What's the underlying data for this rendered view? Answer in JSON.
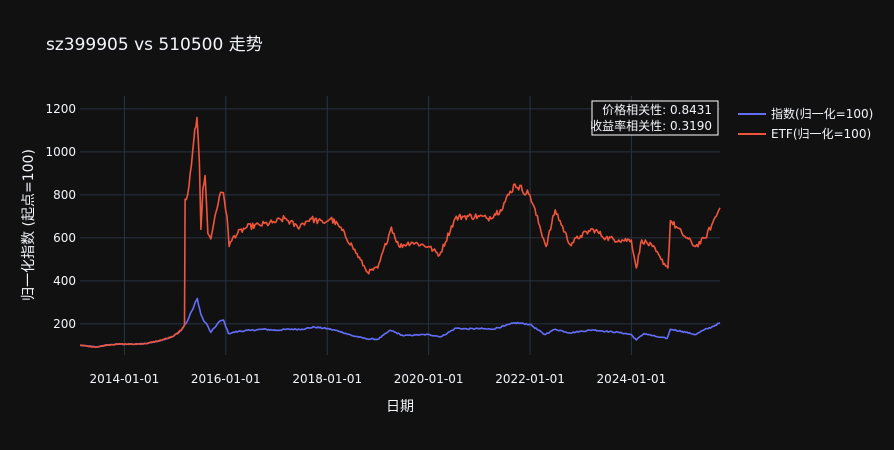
{
  "chart_data": {
    "type": "line",
    "title": "sz399905 vs 510500 走势",
    "xlabel": "日期",
    "ylabel": "归一化指数 (起点=100)",
    "x_range": [
      "2013-02-15",
      "2025-09-30"
    ],
    "ylim": [
      55,
      1260
    ],
    "y_ticks": [
      200,
      400,
      600,
      800,
      1000,
      1200
    ],
    "x_ticks": [
      "2014-01-01",
      "2016-01-01",
      "2018-01-01",
      "2020-01-01",
      "2022-01-01",
      "2024-01-01"
    ],
    "grid": true,
    "legend_position": "right",
    "annotation": {
      "lines": [
        "价格相关性: 0.8431",
        "收益率相关性: 0.3190"
      ]
    },
    "series": [
      {
        "name": "指数(归一化=100)",
        "color": "#636efa",
        "points": [
          [
            "2013-02-15",
            100
          ],
          [
            "2013-04-01",
            97
          ],
          [
            "2013-06-15",
            92
          ],
          [
            "2013-09-01",
            102
          ],
          [
            "2013-12-01",
            106
          ],
          [
            "2014-03-01",
            105
          ],
          [
            "2014-06-01",
            108
          ],
          [
            "2014-09-01",
            120
          ],
          [
            "2014-12-15",
            140
          ],
          [
            "2015-02-15",
            170
          ],
          [
            "2015-04-01",
            215
          ],
          [
            "2015-05-01",
            260
          ],
          [
            "2015-06-10",
            318
          ],
          [
            "2015-07-05",
            245
          ],
          [
            "2015-07-25",
            215
          ],
          [
            "2015-08-20",
            195
          ],
          [
            "2015-09-15",
            160
          ],
          [
            "2015-11-15",
            210
          ],
          [
            "2015-12-15",
            218
          ],
          [
            "2016-01-20",
            155
          ],
          [
            "2016-04-01",
            165
          ],
          [
            "2016-07-01",
            170
          ],
          [
            "2016-10-01",
            175
          ],
          [
            "2016-12-31",
            170
          ],
          [
            "2017-04-01",
            175
          ],
          [
            "2017-07-01",
            175
          ],
          [
            "2017-10-01",
            185
          ],
          [
            "2017-12-31",
            178
          ],
          [
            "2018-04-01",
            165
          ],
          [
            "2018-07-01",
            145
          ],
          [
            "2018-10-15",
            130
          ],
          [
            "2018-12-31",
            128
          ],
          [
            "2019-04-01",
            170
          ],
          [
            "2019-07-01",
            145
          ],
          [
            "2019-10-01",
            148
          ],
          [
            "2019-12-31",
            150
          ],
          [
            "2020-04-01",
            140
          ],
          [
            "2020-07-15",
            180
          ],
          [
            "2020-10-01",
            176
          ],
          [
            "2020-12-31",
            178
          ],
          [
            "2021-04-01",
            175
          ],
          [
            "2021-07-01",
            190
          ],
          [
            "2021-09-15",
            205
          ],
          [
            "2021-12-31",
            198
          ],
          [
            "2022-04-15",
            150
          ],
          [
            "2022-07-01",
            175
          ],
          [
            "2022-10-15",
            158
          ],
          [
            "2022-12-31",
            165
          ],
          [
            "2023-04-01",
            172
          ],
          [
            "2023-07-01",
            165
          ],
          [
            "2023-10-01",
            160
          ],
          [
            "2023-12-31",
            150
          ],
          [
            "2024-02-05",
            125
          ],
          [
            "2024-04-01",
            155
          ],
          [
            "2024-07-01",
            140
          ],
          [
            "2024-09-15",
            132
          ],
          [
            "2024-10-08",
            175
          ],
          [
            "2024-12-31",
            165
          ],
          [
            "2025-04-07",
            150
          ],
          [
            "2025-06-01",
            170
          ],
          [
            "2025-08-01",
            185
          ],
          [
            "2025-09-30",
            205
          ]
        ]
      },
      {
        "name": "ETF(归一化=100)",
        "color": "#ef553b",
        "points": [
          [
            "2013-02-15",
            100
          ],
          [
            "2013-04-01",
            97
          ],
          [
            "2013-06-15",
            92
          ],
          [
            "2013-09-01",
            102
          ],
          [
            "2013-12-01",
            106
          ],
          [
            "2014-03-01",
            105
          ],
          [
            "2014-06-01",
            108
          ],
          [
            "2014-09-01",
            120
          ],
          [
            "2014-12-15",
            140
          ],
          [
            "2015-02-15",
            170
          ],
          [
            "2015-03-10",
            195
          ],
          [
            "2015-03-14",
            780
          ],
          [
            "2015-04-01",
            800
          ],
          [
            "2015-04-20",
            900
          ],
          [
            "2015-05-15",
            1050
          ],
          [
            "2015-06-08",
            1160
          ],
          [
            "2015-06-25",
            950
          ],
          [
            "2015-07-06",
            640
          ],
          [
            "2015-07-20",
            830
          ],
          [
            "2015-08-05",
            890
          ],
          [
            "2015-08-25",
            620
          ],
          [
            "2015-09-15",
            595
          ],
          [
            "2015-10-15",
            700
          ],
          [
            "2015-11-15",
            790
          ],
          [
            "2015-12-15",
            810
          ],
          [
            "2016-01-10",
            700
          ],
          [
            "2016-01-25",
            560
          ],
          [
            "2016-03-01",
            610
          ],
          [
            "2016-06-01",
            650
          ],
          [
            "2016-09-01",
            660
          ],
          [
            "2016-12-01",
            670
          ],
          [
            "2017-03-01",
            690
          ],
          [
            "2017-06-01",
            650
          ],
          [
            "2017-09-01",
            690
          ],
          [
            "2017-12-01",
            670
          ],
          [
            "2018-01-25",
            690
          ],
          [
            "2018-04-01",
            650
          ],
          [
            "2018-07-01",
            560
          ],
          [
            "2018-10-18",
            440
          ],
          [
            "2018-12-31",
            460
          ],
          [
            "2019-04-08",
            650
          ],
          [
            "2019-06-01",
            560
          ],
          [
            "2019-09-01",
            580
          ],
          [
            "2019-12-31",
            560
          ],
          [
            "2020-03-20",
            520
          ],
          [
            "2020-07-10",
            690
          ],
          [
            "2020-09-01",
            700
          ],
          [
            "2020-12-31",
            700
          ],
          [
            "2021-03-01",
            690
          ],
          [
            "2021-06-01",
            730
          ],
          [
            "2021-09-14",
            850
          ],
          [
            "2021-12-31",
            800
          ],
          [
            "2022-04-26",
            560
          ],
          [
            "2022-07-01",
            730
          ],
          [
            "2022-10-15",
            570
          ],
          [
            "2022-12-31",
            610
          ],
          [
            "2023-04-01",
            640
          ],
          [
            "2023-07-01",
            600
          ],
          [
            "2023-10-01",
            590
          ],
          [
            "2023-12-31",
            590
          ],
          [
            "2024-02-05",
            460
          ],
          [
            "2024-03-15",
            590
          ],
          [
            "2024-06-01",
            560
          ],
          [
            "2024-08-01",
            500
          ],
          [
            "2024-09-20",
            460
          ],
          [
            "2024-10-08",
            680
          ],
          [
            "2024-12-31",
            620
          ],
          [
            "2025-04-07",
            560
          ],
          [
            "2025-06-15",
            600
          ],
          [
            "2025-08-01",
            660
          ],
          [
            "2025-09-30",
            740
          ]
        ]
      }
    ]
  }
}
